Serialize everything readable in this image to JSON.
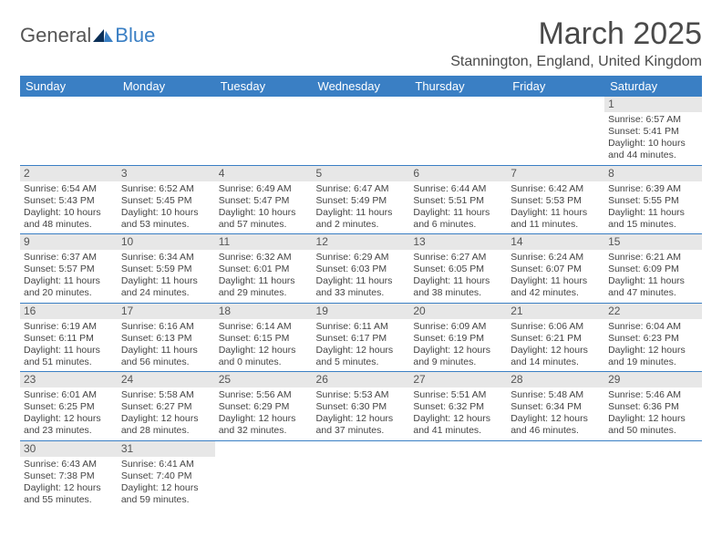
{
  "logo": {
    "part1": "General",
    "part2": "Blue"
  },
  "title": "March 2025",
  "location": "Stannington, England, United Kingdom",
  "colors": {
    "header_bg": "#3a7fc4",
    "header_text": "#ffffff",
    "daynum_bg": "#e7e7e7",
    "rule": "#3a7fc4",
    "logo_blue": "#3a7fc4",
    "text": "#444444"
  },
  "weekdays": [
    "Sunday",
    "Monday",
    "Tuesday",
    "Wednesday",
    "Thursday",
    "Friday",
    "Saturday"
  ],
  "grid": [
    [
      null,
      null,
      null,
      null,
      null,
      null,
      {
        "n": "1",
        "sr": "Sunrise: 6:57 AM",
        "ss": "Sunset: 5:41 PM",
        "dl": "Daylight: 10 hours and 44 minutes."
      }
    ],
    [
      {
        "n": "2",
        "sr": "Sunrise: 6:54 AM",
        "ss": "Sunset: 5:43 PM",
        "dl": "Daylight: 10 hours and 48 minutes."
      },
      {
        "n": "3",
        "sr": "Sunrise: 6:52 AM",
        "ss": "Sunset: 5:45 PM",
        "dl": "Daylight: 10 hours and 53 minutes."
      },
      {
        "n": "4",
        "sr": "Sunrise: 6:49 AM",
        "ss": "Sunset: 5:47 PM",
        "dl": "Daylight: 10 hours and 57 minutes."
      },
      {
        "n": "5",
        "sr": "Sunrise: 6:47 AM",
        "ss": "Sunset: 5:49 PM",
        "dl": "Daylight: 11 hours and 2 minutes."
      },
      {
        "n": "6",
        "sr": "Sunrise: 6:44 AM",
        "ss": "Sunset: 5:51 PM",
        "dl": "Daylight: 11 hours and 6 minutes."
      },
      {
        "n": "7",
        "sr": "Sunrise: 6:42 AM",
        "ss": "Sunset: 5:53 PM",
        "dl": "Daylight: 11 hours and 11 minutes."
      },
      {
        "n": "8",
        "sr": "Sunrise: 6:39 AM",
        "ss": "Sunset: 5:55 PM",
        "dl": "Daylight: 11 hours and 15 minutes."
      }
    ],
    [
      {
        "n": "9",
        "sr": "Sunrise: 6:37 AM",
        "ss": "Sunset: 5:57 PM",
        "dl": "Daylight: 11 hours and 20 minutes."
      },
      {
        "n": "10",
        "sr": "Sunrise: 6:34 AM",
        "ss": "Sunset: 5:59 PM",
        "dl": "Daylight: 11 hours and 24 minutes."
      },
      {
        "n": "11",
        "sr": "Sunrise: 6:32 AM",
        "ss": "Sunset: 6:01 PM",
        "dl": "Daylight: 11 hours and 29 minutes."
      },
      {
        "n": "12",
        "sr": "Sunrise: 6:29 AM",
        "ss": "Sunset: 6:03 PM",
        "dl": "Daylight: 11 hours and 33 minutes."
      },
      {
        "n": "13",
        "sr": "Sunrise: 6:27 AM",
        "ss": "Sunset: 6:05 PM",
        "dl": "Daylight: 11 hours and 38 minutes."
      },
      {
        "n": "14",
        "sr": "Sunrise: 6:24 AM",
        "ss": "Sunset: 6:07 PM",
        "dl": "Daylight: 11 hours and 42 minutes."
      },
      {
        "n": "15",
        "sr": "Sunrise: 6:21 AM",
        "ss": "Sunset: 6:09 PM",
        "dl": "Daylight: 11 hours and 47 minutes."
      }
    ],
    [
      {
        "n": "16",
        "sr": "Sunrise: 6:19 AM",
        "ss": "Sunset: 6:11 PM",
        "dl": "Daylight: 11 hours and 51 minutes."
      },
      {
        "n": "17",
        "sr": "Sunrise: 6:16 AM",
        "ss": "Sunset: 6:13 PM",
        "dl": "Daylight: 11 hours and 56 minutes."
      },
      {
        "n": "18",
        "sr": "Sunrise: 6:14 AM",
        "ss": "Sunset: 6:15 PM",
        "dl": "Daylight: 12 hours and 0 minutes."
      },
      {
        "n": "19",
        "sr": "Sunrise: 6:11 AM",
        "ss": "Sunset: 6:17 PM",
        "dl": "Daylight: 12 hours and 5 minutes."
      },
      {
        "n": "20",
        "sr": "Sunrise: 6:09 AM",
        "ss": "Sunset: 6:19 PM",
        "dl": "Daylight: 12 hours and 9 minutes."
      },
      {
        "n": "21",
        "sr": "Sunrise: 6:06 AM",
        "ss": "Sunset: 6:21 PM",
        "dl": "Daylight: 12 hours and 14 minutes."
      },
      {
        "n": "22",
        "sr": "Sunrise: 6:04 AM",
        "ss": "Sunset: 6:23 PM",
        "dl": "Daylight: 12 hours and 19 minutes."
      }
    ],
    [
      {
        "n": "23",
        "sr": "Sunrise: 6:01 AM",
        "ss": "Sunset: 6:25 PM",
        "dl": "Daylight: 12 hours and 23 minutes."
      },
      {
        "n": "24",
        "sr": "Sunrise: 5:58 AM",
        "ss": "Sunset: 6:27 PM",
        "dl": "Daylight: 12 hours and 28 minutes."
      },
      {
        "n": "25",
        "sr": "Sunrise: 5:56 AM",
        "ss": "Sunset: 6:29 PM",
        "dl": "Daylight: 12 hours and 32 minutes."
      },
      {
        "n": "26",
        "sr": "Sunrise: 5:53 AM",
        "ss": "Sunset: 6:30 PM",
        "dl": "Daylight: 12 hours and 37 minutes."
      },
      {
        "n": "27",
        "sr": "Sunrise: 5:51 AM",
        "ss": "Sunset: 6:32 PM",
        "dl": "Daylight: 12 hours and 41 minutes."
      },
      {
        "n": "28",
        "sr": "Sunrise: 5:48 AM",
        "ss": "Sunset: 6:34 PM",
        "dl": "Daylight: 12 hours and 46 minutes."
      },
      {
        "n": "29",
        "sr": "Sunrise: 5:46 AM",
        "ss": "Sunset: 6:36 PM",
        "dl": "Daylight: 12 hours and 50 minutes."
      }
    ],
    [
      {
        "n": "30",
        "sr": "Sunrise: 6:43 AM",
        "ss": "Sunset: 7:38 PM",
        "dl": "Daylight: 12 hours and 55 minutes."
      },
      {
        "n": "31",
        "sr": "Sunrise: 6:41 AM",
        "ss": "Sunset: 7:40 PM",
        "dl": "Daylight: 12 hours and 59 minutes."
      },
      null,
      null,
      null,
      null,
      null
    ]
  ]
}
